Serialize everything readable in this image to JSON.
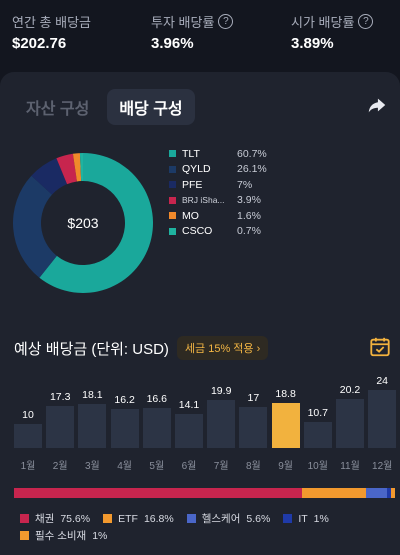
{
  "stats": [
    {
      "label": "연간 총 배당금",
      "value": "$202.76",
      "help": false
    },
    {
      "label": "투자 배당률",
      "value": "3.96%",
      "help": true
    },
    {
      "label": "시가 배당률",
      "value": "3.89%",
      "help": true
    }
  ],
  "tabs": [
    {
      "label": "자산 구성",
      "active": false
    },
    {
      "label": "배당 구성",
      "active": true
    }
  ],
  "donut": {
    "total": "$203",
    "slices": [
      {
        "name": "TLT",
        "percent": "60.7%",
        "value": 60.7,
        "color": "#1aa89b"
      },
      {
        "name": "QYLD",
        "percent": "26.1%",
        "value": 26.1,
        "color": "#1c3a66"
      },
      {
        "name": "PFE",
        "percent": "7%",
        "value": 7,
        "color": "#1a2a63"
      },
      {
        "name": "BRJ iSha...",
        "percent": "3.9%",
        "value": 3.9,
        "color": "#c7254e"
      },
      {
        "name": "MO",
        "percent": "1.6%",
        "value": 1.6,
        "color": "#f0892b"
      },
      {
        "name": "CSCO",
        "percent": "0.7%",
        "value": 0.7,
        "color": "#1fb3a0"
      }
    ]
  },
  "estimate": {
    "title": "예상 배당금 (단위: USD)",
    "tax_badge": "세금 15% 적용 ›"
  },
  "chart_data": {
    "type": "bar",
    "categories": [
      "1월",
      "2월",
      "3월",
      "4월",
      "5월",
      "6월",
      "7월",
      "8월",
      "9월",
      "10월",
      "11월",
      "12월"
    ],
    "values": [
      10,
      17.3,
      18.1,
      16.2,
      16.6,
      14.1,
      19.9,
      17,
      18.8,
      10.7,
      20.2,
      24
    ],
    "labels": [
      "10",
      "17.3",
      "18.1",
      "16.2",
      "16.6",
      "14.1",
      "19.9",
      "17",
      "18.8",
      "10.7",
      "20.2",
      "24"
    ],
    "highlight_index": 8,
    "bar_color": "#2c3445",
    "highlight_color": "#f2b23e"
  },
  "sectors": [
    {
      "name": "채권",
      "percent": "75.6%",
      "value": 75.6,
      "color": "#c7254e"
    },
    {
      "name": "ETF",
      "percent": "16.8%",
      "value": 16.8,
      "color": "#f2992e"
    },
    {
      "name": "헬스케어",
      "percent": "5.6%",
      "value": 5.6,
      "color": "#4a66c8"
    },
    {
      "name": "IT",
      "percent": "1%",
      "value": 1,
      "color": "#1f3aa8"
    },
    {
      "name": "필수 소비재",
      "percent": "1%",
      "value": 1,
      "color": "#f2992e"
    }
  ]
}
